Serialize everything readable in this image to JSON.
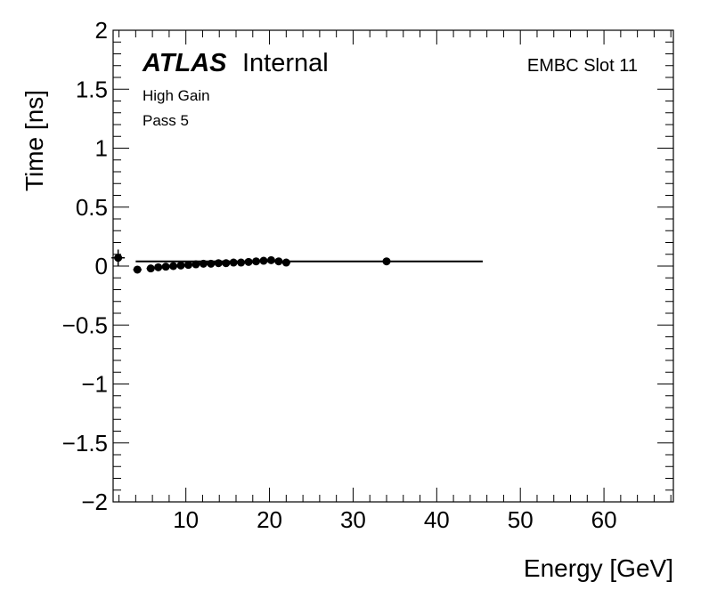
{
  "chart_data": {
    "type": "scatter",
    "xlabel": "Energy [GeV]",
    "ylabel": "Time [ns]",
    "xlim": [
      1.3,
      68.3
    ],
    "ylim": [
      -2,
      2
    ],
    "x_ticks": [
      10,
      20,
      30,
      40,
      50,
      60
    ],
    "y_ticks": [
      2,
      1.5,
      1,
      0.5,
      0,
      -0.5,
      -1,
      -1.5,
      -2
    ],
    "x_tick_labels": [
      "10",
      "20",
      "30",
      "40",
      "50",
      "60"
    ],
    "y_tick_labels": [
      "2",
      "1.5",
      "1",
      "0.5",
      "0",
      "−0.5",
      "−1",
      "−1.5",
      "−2"
    ],
    "experiment_bold": "ATLAS",
    "experiment_status": "Internal",
    "region_label": "EMBC Slot 11",
    "annotations": [
      "High Gain",
      "Pass 5"
    ],
    "points": [
      {
        "x": 1.9,
        "y": 0.07,
        "yerr": 0.07,
        "xerr": 0.8
      },
      {
        "x": 4.2,
        "y": -0.03,
        "yerr": 0.03,
        "xerr": 0.5
      },
      {
        "x": 5.8,
        "y": -0.02,
        "yerr": 0.03,
        "xerr": 0.5
      },
      {
        "x": 6.7,
        "y": -0.01,
        "yerr": 0.03,
        "xerr": 0.5
      },
      {
        "x": 7.6,
        "y": -0.005,
        "yerr": 0.03,
        "xerr": 0.5
      },
      {
        "x": 8.5,
        "y": 0.0,
        "yerr": 0.03,
        "xerr": 0.5
      },
      {
        "x": 9.4,
        "y": 0.005,
        "yerr": 0.03,
        "xerr": 0.5
      },
      {
        "x": 10.3,
        "y": 0.01,
        "yerr": 0.03,
        "xerr": 0.5
      },
      {
        "x": 11.2,
        "y": 0.015,
        "yerr": 0.03,
        "xerr": 0.5
      },
      {
        "x": 12.1,
        "y": 0.02,
        "yerr": 0.03,
        "xerr": 0.5
      },
      {
        "x": 13.0,
        "y": 0.02,
        "yerr": 0.03,
        "xerr": 0.5
      },
      {
        "x": 13.9,
        "y": 0.025,
        "yerr": 0.03,
        "xerr": 0.5
      },
      {
        "x": 14.8,
        "y": 0.025,
        "yerr": 0.03,
        "xerr": 0.5
      },
      {
        "x": 15.7,
        "y": 0.03,
        "yerr": 0.03,
        "xerr": 0.5
      },
      {
        "x": 16.6,
        "y": 0.03,
        "yerr": 0.03,
        "xerr": 0.5
      },
      {
        "x": 17.5,
        "y": 0.035,
        "yerr": 0.03,
        "xerr": 0.5
      },
      {
        "x": 18.4,
        "y": 0.04,
        "yerr": 0.03,
        "xerr": 0.5
      },
      {
        "x": 19.3,
        "y": 0.045,
        "yerr": 0.03,
        "xerr": 0.5
      },
      {
        "x": 20.2,
        "y": 0.05,
        "yerr": 0.03,
        "xerr": 0.5
      },
      {
        "x": 21.1,
        "y": 0.04,
        "yerr": 0.03,
        "xerr": 0.5
      },
      {
        "x": 22.0,
        "y": 0.03,
        "yerr": 0.03,
        "xerr": 0.5
      },
      {
        "x": 34.0,
        "y": 0.04,
        "yerr": 0.02,
        "xerr": 0.4
      }
    ],
    "fit": {
      "x0": 4.0,
      "x1": 45.5,
      "y0": 0.04,
      "y1": 0.04
    },
    "colors": {
      "marker": "#000000",
      "fit": "#000000"
    }
  }
}
